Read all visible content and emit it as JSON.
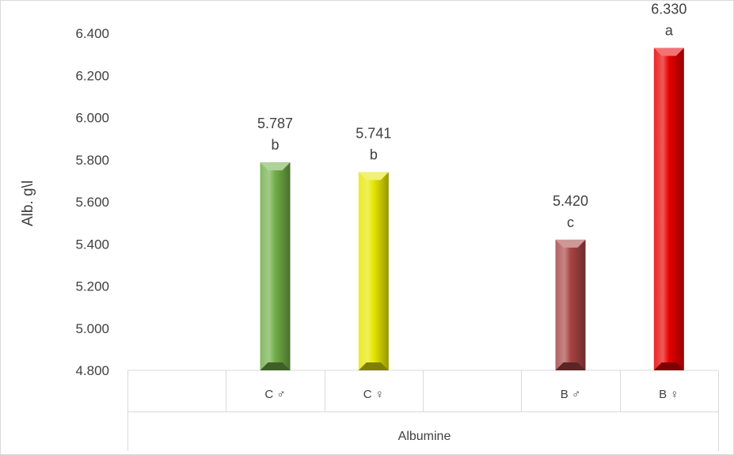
{
  "chart_data": {
    "type": "bar",
    "ylabel": "Alb. g\\l",
    "ylim": [
      4.8,
      6.4
    ],
    "yticks": [
      "4.800",
      "5.000",
      "5.200",
      "5.400",
      "5.600",
      "5.800",
      "6.000",
      "6.200",
      "6.400"
    ],
    "group_label": "Albumine",
    "categories": [
      "",
      "C ♂",
      "C ♀",
      "",
      "B ♂",
      "B ♀"
    ],
    "values": [
      null,
      5.787,
      5.741,
      null,
      5.42,
      6.33
    ],
    "value_labels": [
      "",
      "5.787",
      "5.741",
      "",
      "5.420",
      "6.330"
    ],
    "significance": [
      "",
      "b",
      "b",
      "",
      "c",
      "a"
    ],
    "colors": [
      "",
      "#70AD47",
      "#E6E600",
      "",
      "#A84444",
      "#E60000"
    ],
    "grid": false,
    "legend": "none"
  }
}
